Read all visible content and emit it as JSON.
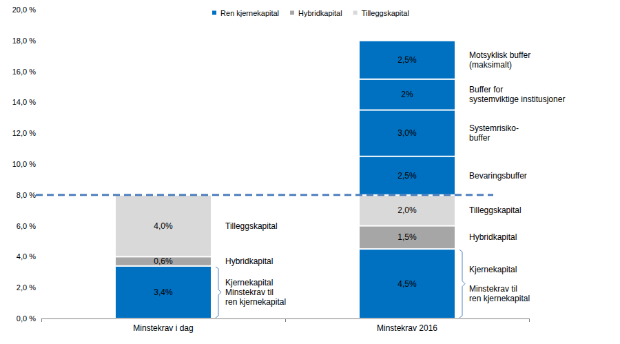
{
  "chart_data": {
    "type": "bar",
    "stacked": true,
    "data_labels": true,
    "legend": "top",
    "grid": false,
    "categories": [
      "Minstekrav i dag",
      "Minstekrav 2016"
    ],
    "ylim": [
      0,
      20
    ],
    "yticks": [
      {
        "value": 0,
        "label": "0,0 %"
      },
      {
        "value": 2,
        "label": "2,0 %"
      },
      {
        "value": 4,
        "label": "4,0 %"
      },
      {
        "value": 6,
        "label": "6,0 %"
      },
      {
        "value": 8,
        "label": "8,0 %"
      },
      {
        "value": 10,
        "label": "10,0 %"
      },
      {
        "value": 12,
        "label": "12,0 %"
      },
      {
        "value": 14,
        "label": "14,0 %"
      },
      {
        "value": 16,
        "label": "16,0 %"
      },
      {
        "value": 18,
        "label": "18,0 %"
      },
      {
        "value": 20,
        "label": "20,0 %"
      }
    ],
    "reference_line": 8,
    "series": [
      {
        "name": "Ren kjernekapital",
        "color": "#0070C0",
        "values": [
          3.4,
          4.5
        ],
        "value_labels": [
          "3,4%",
          "4,5%"
        ],
        "notes": [
          "Kjernekapital\nMinstekrav til\nren kjernekapital",
          "Kjernekapital\n\nMinstekrav til\nren kjernekapital"
        ]
      },
      {
        "name": "Hybridkapital",
        "color": "#A6A6A6",
        "values": [
          0.6,
          1.5
        ],
        "value_labels": [
          "0,6%",
          "1,5%"
        ],
        "notes": [
          "Hybridkapital",
          "Hybridkapital"
        ]
      },
      {
        "name": "Tilleggskapital",
        "color": "#D9D9D9",
        "values": [
          4.0,
          2.0
        ],
        "value_labels": [
          "4,0%",
          "2,0%"
        ],
        "notes": [
          "Tilleggskapital",
          "Tilleggskapital"
        ]
      },
      {
        "color": "#0070C0",
        "values": [
          null,
          2.5
        ],
        "value_labels": [
          null,
          "2,5%"
        ],
        "notes": [
          null,
          "Bevaringsbuffer"
        ]
      },
      {
        "color": "#0070C0",
        "values": [
          null,
          3.0
        ],
        "value_labels": [
          null,
          "3,0%"
        ],
        "notes": [
          null,
          "Systemrisiko-\nbuffer"
        ]
      },
      {
        "color": "#0070C0",
        "values": [
          null,
          2
        ],
        "value_labels": [
          null,
          "2%"
        ],
        "notes": [
          null,
          "Buffer for\nsystemviktige institusjoner"
        ]
      },
      {
        "color": "#0070C0",
        "values": [
          null,
          2.5
        ],
        "value_labels": [
          null,
          "2,5%"
        ],
        "notes": [
          null,
          "Motsyklisk buffer\n(maksimalt)"
        ]
      }
    ]
  }
}
